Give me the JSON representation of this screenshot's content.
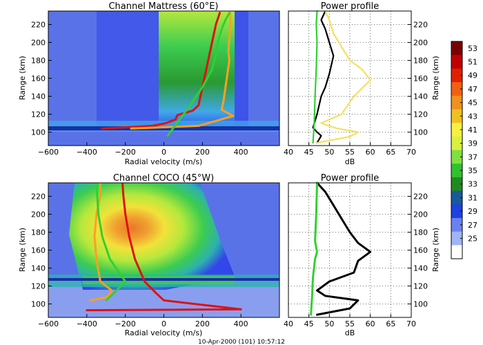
{
  "figure": {
    "timestamp": "10-Apr-2000 (101) 10:57:12"
  },
  "chart_data": [
    {
      "type": "heatmap",
      "title": "Channel Mattress (60°E)",
      "xlabel": "Radial velocity (m/s)",
      "ylabel": "Range (km)",
      "xlim": [
        -600,
        600
      ],
      "ylim": [
        85,
        235
      ],
      "xticks": [
        -600,
        -400,
        -200,
        0,
        200,
        400
      ],
      "yticks": [
        100,
        120,
        140,
        160,
        180,
        200,
        220
      ],
      "series": [
        {
          "name": "red",
          "color": "#e01010",
          "x": [
            -320,
            -60,
            10,
            60,
            70,
            150,
            180,
            195,
            210,
            230,
            250,
            270,
            290
          ],
          "y": [
            104,
            107,
            110,
            114,
            119,
            124,
            130,
            145,
            160,
            180,
            200,
            220,
            233
          ]
        },
        {
          "name": "orange",
          "color": "#ffa020",
          "x": [
            -170,
            180,
            360,
            300,
            310,
            320,
            330,
            340,
            335,
            340,
            345,
            345
          ],
          "y": [
            104,
            107,
            118,
            125,
            135,
            150,
            165,
            180,
            190,
            205,
            220,
            233
          ]
        },
        {
          "name": "green",
          "color": "#30d030",
          "x": [
            20,
            60,
            120,
            200,
            250,
            270,
            280,
            300,
            320,
            340
          ],
          "y": [
            96,
            108,
            125,
            150,
            170,
            185,
            200,
            215,
            225,
            233
          ]
        }
      ]
    },
    {
      "type": "line",
      "title": "Power profile",
      "xlabel": "dB",
      "ylabel": "Range (km)",
      "xlim": [
        40,
        70
      ],
      "ylim": [
        85,
        235
      ],
      "xticks": [
        40,
        45,
        50,
        55,
        60,
        65,
        70
      ],
      "yticks": [
        100,
        120,
        140,
        160,
        180,
        200,
        220
      ],
      "series": [
        {
          "name": "black",
          "color": "#000000",
          "x": [
            47,
            48,
            47,
            46,
            47,
            48,
            49,
            50,
            51,
            50,
            49,
            48,
            49
          ],
          "y": [
            88,
            96,
            100,
            105,
            120,
            140,
            150,
            165,
            185,
            200,
            215,
            225,
            235
          ]
        },
        {
          "name": "yellow",
          "color": "#f5e060",
          "x": [
            47,
            55,
            57,
            52,
            48,
            53,
            56,
            60,
            58,
            55,
            53,
            51,
            50,
            49
          ],
          "y": [
            88,
            95,
            100,
            104,
            110,
            120,
            140,
            158,
            170,
            180,
            195,
            210,
            225,
            235
          ]
        },
        {
          "name": "green",
          "color": "#30d030",
          "x": [
            46,
            46.3,
            46.5,
            46.8,
            47,
            46.8,
            47
          ],
          "y": [
            88,
            110,
            140,
            170,
            200,
            220,
            235
          ]
        }
      ]
    },
    {
      "type": "heatmap",
      "title": "Channel COCO (45°W)",
      "xlabel": "Radial velocity (m/s)",
      "ylabel": "Range (km)",
      "xlim": [
        -600,
        600
      ],
      "ylim": [
        85,
        235
      ],
      "xticks": [
        -600,
        -400,
        -200,
        0,
        200,
        400
      ],
      "yticks": [
        100,
        120,
        140,
        160,
        180,
        200,
        220
      ],
      "series": [
        {
          "name": "red",
          "color": "#e01010",
          "x": [
            -400,
            400,
            0,
            -40,
            -100,
            -150,
            -180,
            -200,
            -210,
            -215
          ],
          "y": [
            93,
            94,
            104,
            112,
            125,
            150,
            175,
            200,
            220,
            235
          ]
        },
        {
          "name": "orange",
          "color": "#ffa020",
          "x": [
            -380,
            -290,
            -270,
            -330,
            -350,
            -360,
            -350,
            -330,
            -330
          ],
          "y": [
            104,
            108,
            115,
            125,
            150,
            175,
            200,
            220,
            235
          ]
        },
        {
          "name": "green",
          "color": "#30d030",
          "x": [
            -300,
            -260,
            -200,
            -280,
            -320,
            -340,
            -350
          ],
          "y": [
            104,
            112,
            125,
            150,
            175,
            200,
            235
          ]
        }
      ]
    },
    {
      "type": "line",
      "title": "Power profile",
      "xlabel": "dB",
      "ylabel": "Range (km)",
      "xlim": [
        40,
        70
      ],
      "ylim": [
        85,
        235
      ],
      "xticks": [
        40,
        45,
        50,
        55,
        60,
        65,
        70
      ],
      "yticks": [
        100,
        120,
        140,
        160,
        180,
        200,
        220
      ],
      "series": [
        {
          "name": "black",
          "color": "#000000",
          "x": [
            47,
            55,
            57,
            49,
            47,
            50,
            56,
            57,
            60,
            57,
            55,
            53,
            51,
            49,
            47
          ],
          "y": [
            88,
            95,
            104,
            109,
            115,
            125,
            135,
            148,
            158,
            168,
            180,
            195,
            210,
            225,
            235
          ]
        },
        {
          "name": "green",
          "color": "#30d030",
          "x": [
            45.5,
            45.8,
            46,
            46.5,
            47,
            46.5,
            46.8,
            47
          ],
          "y": [
            88,
            110,
            130,
            150,
            158,
            170,
            200,
            235
          ]
        }
      ]
    }
  ],
  "colorbar": {
    "levels": [
      53,
      51,
      49,
      47,
      45,
      43,
      41,
      39,
      37,
      35,
      33,
      31,
      29,
      27,
      25
    ],
    "colors": [
      "#7a0000",
      "#c00000",
      "#e02000",
      "#f06010",
      "#f09020",
      "#f0c020",
      "#f8f040",
      "#d8f040",
      "#80e040",
      "#30c030",
      "#208a20",
      "#1a5a9a",
      "#2040e0",
      "#6a82f0",
      "#a0b4f8",
      "#ffffff"
    ]
  },
  "palette": {
    "bg": "#5a72e8",
    "lowband": "#8a9ef0",
    "blue": "#3246ea",
    "dark": "#1c2ea8",
    "cyan": "#40a8e8",
    "teal": "#2eb0b0",
    "green1": "#3ccc50",
    "green2": "#2a9a32",
    "lime": "#b4e83c",
    "yellow": "#f2e23a",
    "orange": "#f0a030",
    "orange2": "#e87828"
  }
}
